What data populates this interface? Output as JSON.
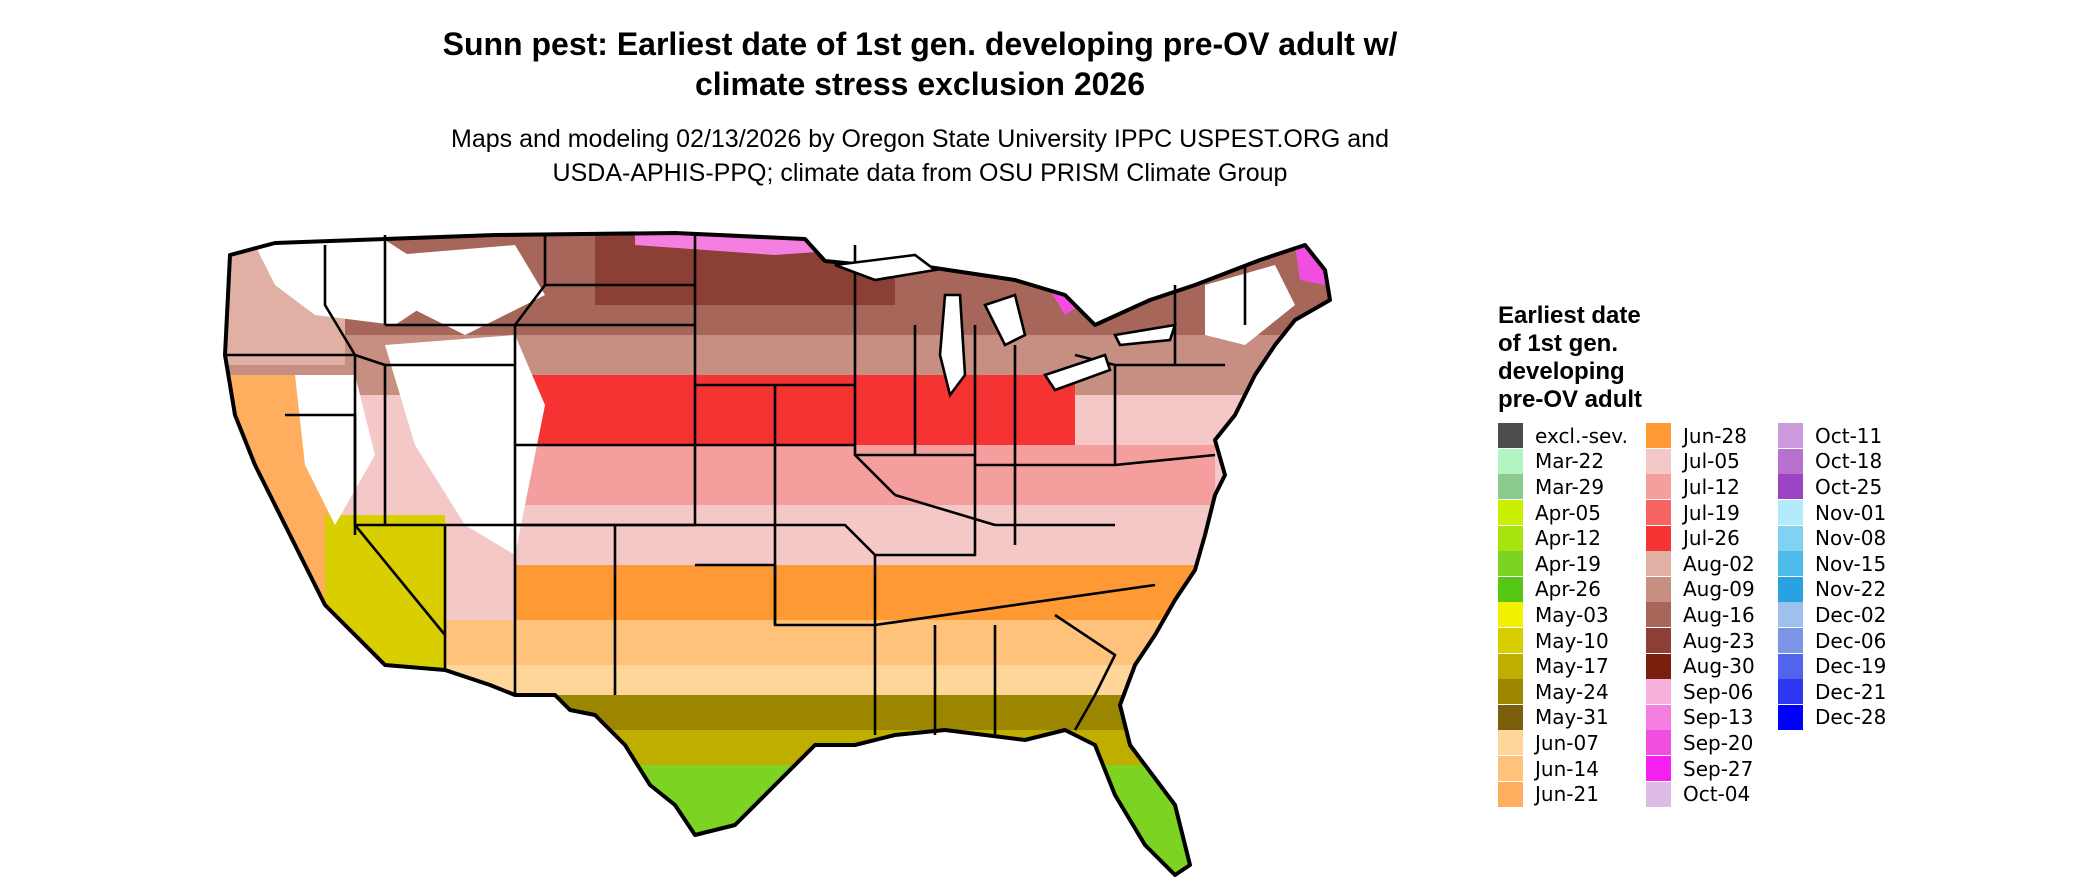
{
  "title": {
    "line1": "Sunn pest: Earliest date of 1st gen. developing pre-OV adult w/",
    "line2": "climate stress exclusion 2026"
  },
  "subtitle": {
    "line1": "Maps and modeling 02/13/2026 by Oregon State University IPPC USPEST.ORG and",
    "line2": "USDA-APHIS-PPQ; climate data from OSU PRISM Climate Group"
  },
  "legend": {
    "title_lines": [
      "Earliest date",
      "of 1st gen.",
      "developing",
      "pre-OV adult"
    ],
    "columns": [
      [
        {
          "label": "excl.-sev.",
          "color": "#4d4d4d"
        },
        {
          "label": "Mar-22",
          "color": "#b3f5c2"
        },
        {
          "label": "Mar-29",
          "color": "#8cc98c"
        },
        {
          "label": "Apr-05",
          "color": "#c8f000"
        },
        {
          "label": "Apr-12",
          "color": "#a6e60e"
        },
        {
          "label": "Apr-19",
          "color": "#7dd321"
        },
        {
          "label": "Apr-26",
          "color": "#55c714"
        },
        {
          "label": "May-03",
          "color": "#f2f200"
        },
        {
          "label": "May-10",
          "color": "#d8ce00"
        },
        {
          "label": "May-17",
          "color": "#bfae00"
        },
        {
          "label": "May-24",
          "color": "#9c8600"
        },
        {
          "label": "May-31",
          "color": "#7a5e0c"
        },
        {
          "label": "Jun-07",
          "color": "#ffd699"
        },
        {
          "label": "Jun-14",
          "color": "#ffc27a"
        },
        {
          "label": "Jun-21",
          "color": "#ffad5e"
        }
      ],
      [
        {
          "label": "Jun-28",
          "color": "#ff9933"
        },
        {
          "label": "Jul-05",
          "color": "#f5c8c8"
        },
        {
          "label": "Jul-12",
          "color": "#f59e9e"
        },
        {
          "label": "Jul-19",
          "color": "#f56363"
        },
        {
          "label": "Jul-26",
          "color": "#f53333"
        },
        {
          "label": "Aug-02",
          "color": "#e0b0a4"
        },
        {
          "label": "Aug-09",
          "color": "#c68f82"
        },
        {
          "label": "Aug-16",
          "color": "#a6665a"
        },
        {
          "label": "Aug-23",
          "color": "#8c3f34"
        },
        {
          "label": "Aug-30",
          "color": "#7a1f0e"
        },
        {
          "label": "Sep-06",
          "color": "#f5b0dc"
        },
        {
          "label": "Sep-13",
          "color": "#f57fe0"
        },
        {
          "label": "Sep-20",
          "color": "#f04ee0"
        },
        {
          "label": "Sep-27",
          "color": "#f51ff0"
        },
        {
          "label": "Oct-04",
          "color": "#ddbde6"
        }
      ],
      [
        {
          "label": "Oct-11",
          "color": "#cc99dd"
        },
        {
          "label": "Oct-18",
          "color": "#b772d0"
        },
        {
          "label": "Oct-25",
          "color": "#9c44c4"
        },
        {
          "label": "Nov-01",
          "color": "#b3ebfa"
        },
        {
          "label": "Nov-08",
          "color": "#80d1f2"
        },
        {
          "label": "Nov-15",
          "color": "#4fbbea"
        },
        {
          "label": "Nov-22",
          "color": "#2aa1e0"
        },
        {
          "label": "Dec-02",
          "color": "#9ec0ec"
        },
        {
          "label": "Dec-06",
          "color": "#7b95e8"
        },
        {
          "label": "Dec-19",
          "color": "#5064ee"
        },
        {
          "label": "Dec-21",
          "color": "#2d36f3"
        },
        {
          "label": "Dec-28",
          "color": "#0000ff"
        }
      ]
    ]
  }
}
